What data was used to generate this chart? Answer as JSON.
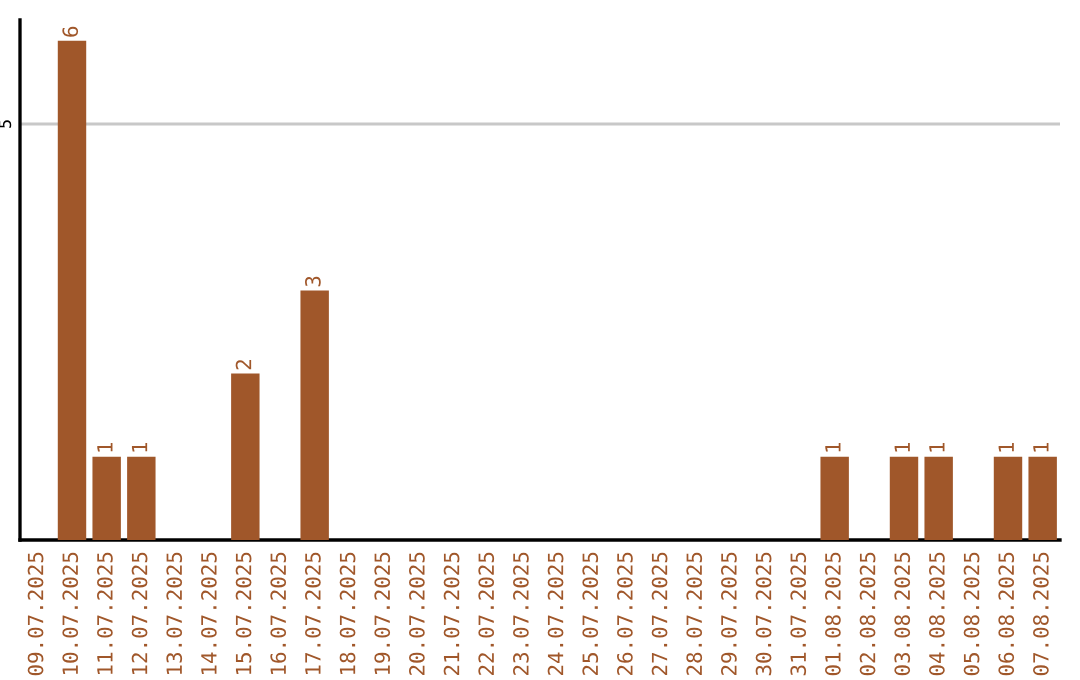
{
  "chart_data": {
    "type": "bar",
    "categories": [
      "09.07.2025",
      "10.07.2025",
      "11.07.2025",
      "12.07.2025",
      "13.07.2025",
      "14.07.2025",
      "15.07.2025",
      "16.07.2025",
      "17.07.2025",
      "18.07.2025",
      "19.07.2025",
      "20.07.2025",
      "21.07.2025",
      "22.07.2025",
      "23.07.2025",
      "24.07.2025",
      "25.07.2025",
      "26.07.2025",
      "27.07.2025",
      "28.07.2025",
      "29.07.2025",
      "30.07.2025",
      "31.07.2025",
      "01.08.2025",
      "02.08.2025",
      "03.08.2025",
      "04.08.2025",
      "05.08.2025",
      "06.08.2025",
      "07.08.2025"
    ],
    "values": [
      0,
      6,
      1,
      1,
      0,
      0,
      2,
      0,
      3,
      0,
      0,
      0,
      0,
      0,
      0,
      0,
      0,
      0,
      0,
      0,
      0,
      0,
      0,
      1,
      0,
      1,
      1,
      0,
      1,
      1
    ],
    "value_labels": [
      null,
      "6",
      "1",
      "1",
      null,
      null,
      "2",
      null,
      "3",
      null,
      null,
      null,
      null,
      null,
      null,
      null,
      null,
      null,
      null,
      null,
      null,
      null,
      null,
      "1",
      null,
      "1",
      "1",
      null,
      "1",
      "1"
    ],
    "color": "#a0572a",
    "ylim": [
      0,
      6.25
    ],
    "yticks": [
      5
    ],
    "grid": "y",
    "legend": false
  }
}
